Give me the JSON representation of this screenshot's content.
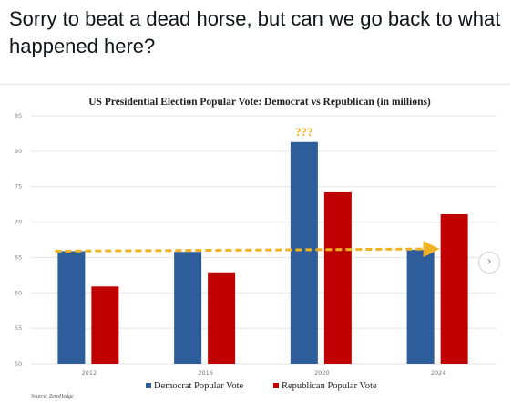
{
  "tweet": {
    "text": "Sorry to beat a dead horse, but can we go back to what happened here?"
  },
  "chart_data": {
    "type": "bar",
    "title": "US Presidential Election Popular Vote: Democrat vs Republican (in millions)",
    "categories": [
      "2012",
      "2016",
      "2020",
      "2024"
    ],
    "series": [
      {
        "name": "Democrat Popular Vote",
        "color": "#2e5d9b",
        "values": [
          65.9,
          65.8,
          81.3,
          66.1
        ]
      },
      {
        "name": "Republican Popular Vote",
        "color": "#c00000",
        "values": [
          60.9,
          62.9,
          74.2,
          71.1
        ]
      }
    ],
    "ylim": [
      50,
      85
    ],
    "yticks": [
      "50",
      "55",
      "60",
      "65",
      "70",
      "75",
      "80",
      "85"
    ],
    "grid": true,
    "legend": "bottom",
    "annotations": {
      "question_marks": "???",
      "trend_color": "#f0b323"
    },
    "source": "Source: ZeroHedge"
  }
}
